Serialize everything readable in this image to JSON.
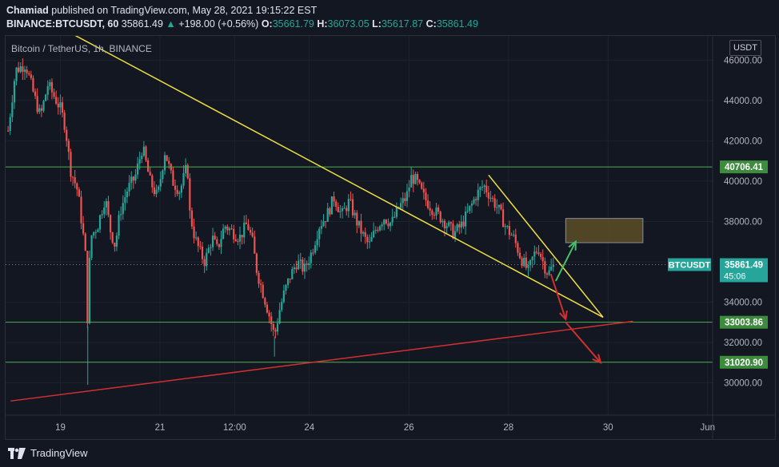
{
  "header": {
    "author": "Chamiad",
    "published_text": "published on TradingView.com, May 28, 2021 19:15:22 EST",
    "symbol": "BINANCE:BTCUSDT, 60",
    "last": "35861.49",
    "arrow": "▲",
    "change": "+198.00 (+0.56%)",
    "o_label": "O:",
    "o": "35661.79",
    "h_label": "H:",
    "h": "36073.05",
    "l_label": "L:",
    "l": "35617.87",
    "c_label": "C:",
    "c": "35861.49"
  },
  "legend_title": "Bitcoin / TetherUS, 1h, BINANCE",
  "currency_button": "USDT",
  "footer": {
    "brand": "TradingView"
  },
  "colors": {
    "up": "#26a69a",
    "down": "#ef5350",
    "trend": "#f0e040",
    "support": "#4caf50",
    "red_trend": "#d32f2f",
    "box": "#5c4d26"
  },
  "chart_data": {
    "type": "candlestick",
    "title": "Bitcoin / TetherUS, 1h, BINANCE",
    "y_ticks": [
      30000,
      32000,
      34000,
      36000,
      38000,
      40000,
      42000,
      44000,
      46000
    ],
    "y_tick_labels": [
      "30000.00",
      "32000.00",
      "34000.00",
      "36000.00",
      "38000.00",
      "40000.00",
      "42000.00",
      "44000.00",
      "46000.00"
    ],
    "ylim": [
      28400,
      47200
    ],
    "xlim": [
      17.9,
      32.1
    ],
    "x_ticks": [
      {
        "pos": 19,
        "label": "19"
      },
      {
        "pos": 21,
        "label": "21"
      },
      {
        "pos": 22.5,
        "label": "12:00"
      },
      {
        "pos": 24,
        "label": "24"
      },
      {
        "pos": 26,
        "label": "26"
      },
      {
        "pos": 28,
        "label": "28"
      },
      {
        "pos": 30,
        "label": "30"
      },
      {
        "pos": 32,
        "label": "Jun"
      }
    ],
    "path": [
      [
        17.95,
        42500
      ],
      [
        18.1,
        45500
      ],
      [
        18.3,
        45800
      ],
      [
        18.5,
        44000
      ],
      [
        18.6,
        43200
      ],
      [
        18.75,
        44800
      ],
      [
        19.0,
        43600
      ],
      [
        19.1,
        42700
      ],
      [
        19.2,
        40600
      ],
      [
        19.35,
        39500
      ],
      [
        19.5,
        36500
      ],
      [
        19.55,
        32800
      ],
      [
        19.6,
        37200
      ],
      [
        19.75,
        37800
      ],
      [
        19.9,
        39200
      ],
      [
        20.0,
        37600
      ],
      [
        20.1,
        36800
      ],
      [
        20.2,
        38500
      ],
      [
        20.35,
        39600
      ],
      [
        20.5,
        40200
      ],
      [
        20.65,
        41700
      ],
      [
        20.8,
        40000
      ],
      [
        20.95,
        39200
      ],
      [
        21.1,
        41500
      ],
      [
        21.25,
        40000
      ],
      [
        21.4,
        39500
      ],
      [
        21.55,
        40800
      ],
      [
        21.6,
        38400
      ],
      [
        21.7,
        37200
      ],
      [
        21.8,
        36500
      ],
      [
        21.9,
        36000
      ],
      [
        22.05,
        37200
      ],
      [
        22.15,
        36600
      ],
      [
        22.3,
        37800
      ],
      [
        22.45,
        37500
      ],
      [
        22.6,
        37200
      ],
      [
        22.75,
        37900
      ],
      [
        22.85,
        37100
      ],
      [
        22.95,
        35500
      ],
      [
        23.1,
        34200
      ],
      [
        23.2,
        33300
      ],
      [
        23.3,
        32300
      ],
      [
        23.4,
        33600
      ],
      [
        23.5,
        34500
      ],
      [
        23.6,
        35200
      ],
      [
        23.75,
        36000
      ],
      [
        23.9,
        35600
      ],
      [
        24.05,
        36500
      ],
      [
        24.2,
        37800
      ],
      [
        24.35,
        38300
      ],
      [
        24.5,
        39200
      ],
      [
        24.65,
        38300
      ],
      [
        24.8,
        39000
      ],
      [
        24.95,
        38000
      ],
      [
        25.1,
        37200
      ],
      [
        25.2,
        36800
      ],
      [
        25.35,
        37700
      ],
      [
        25.5,
        38200
      ],
      [
        25.65,
        37900
      ],
      [
        25.8,
        38700
      ],
      [
        25.95,
        39200
      ],
      [
        26.05,
        40200
      ],
      [
        26.15,
        40000
      ],
      [
        26.3,
        39200
      ],
      [
        26.45,
        38700
      ],
      [
        26.6,
        38300
      ],
      [
        26.75,
        37900
      ],
      [
        26.9,
        37400
      ],
      [
        27.05,
        37800
      ],
      [
        27.2,
        38500
      ],
      [
        27.35,
        39300
      ],
      [
        27.5,
        39800
      ],
      [
        27.65,
        39200
      ],
      [
        27.8,
        38600
      ],
      [
        27.95,
        37700
      ],
      [
        28.1,
        37200
      ],
      [
        28.25,
        36200
      ],
      [
        28.4,
        35500
      ],
      [
        28.5,
        36300
      ],
      [
        28.6,
        36700
      ],
      [
        28.72,
        35800
      ],
      [
        28.8,
        35400
      ],
      [
        28.9,
        35862
      ]
    ],
    "annotations": {
      "support_lines": [
        {
          "value": 40706.41,
          "label": "40706.41"
        },
        {
          "value": 33003.86,
          "label": "33003.86"
        },
        {
          "value": 31020.9,
          "label": "31020.90"
        }
      ],
      "current_price": {
        "value": 35861.49,
        "symbol": "BTCUSDT",
        "label": "35861.49",
        "countdown": "45:06"
      },
      "trend_lines": [
        {
          "color": "trend",
          "from": [
            17.95,
            49000
          ],
          "to": [
            29.9,
            33250
          ]
        },
        {
          "color": "trend",
          "from": [
            27.6,
            40300
          ],
          "to": [
            29.9,
            33250
          ]
        },
        {
          "color": "red_trend",
          "from": [
            18.0,
            29100
          ],
          "to": [
            30.5,
            33050
          ]
        }
      ],
      "box": {
        "x0": 29.15,
        "x1": 30.7,
        "y0": 36950,
        "y1": 38150
      },
      "arrows": [
        {
          "color": "up",
          "from": [
            28.95,
            35050
          ],
          "to": [
            29.35,
            37000
          ]
        },
        {
          "color": "down",
          "from": [
            28.85,
            35400
          ],
          "to": [
            29.15,
            33150
          ]
        },
        {
          "color": "down",
          "from": [
            29.15,
            33000
          ],
          "to": [
            29.85,
            31000
          ]
        }
      ]
    }
  }
}
